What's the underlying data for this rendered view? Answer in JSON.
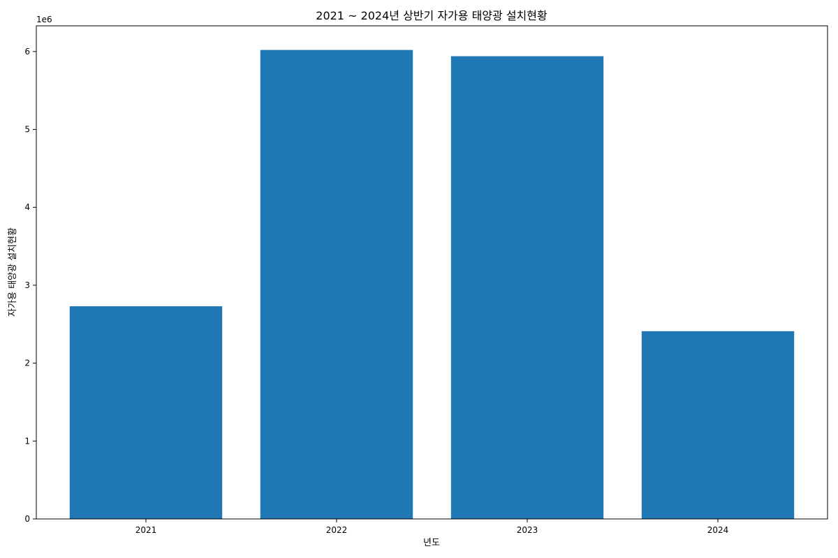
{
  "chart_data": {
    "type": "bar",
    "title": "2021 ~ 2024년 상반기 자가용 태양광 설치현황",
    "xlabel": "년도",
    "ylabel": "자가용 태양광 설치현황",
    "y_offset_label": "1e6",
    "y_scale": 1000000,
    "categories": [
      "2021",
      "2022",
      "2023",
      "2024"
    ],
    "values": [
      2730000,
      6020000,
      5940000,
      2410000
    ],
    "ylim": [
      0,
      6330000
    ],
    "yticks": [
      0,
      1,
      2,
      3,
      4,
      5,
      6
    ],
    "ytick_labels": [
      "0",
      "1",
      "2",
      "3",
      "4",
      "5",
      "6"
    ],
    "bar_color": "#1f77b4",
    "grid": false,
    "legend": "none"
  }
}
